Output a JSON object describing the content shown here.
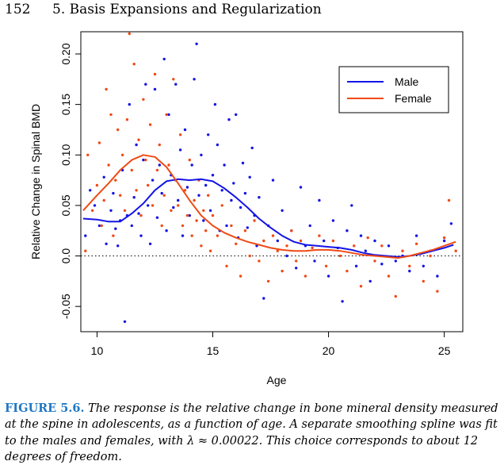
{
  "header": {
    "page_number": "152",
    "chapter_title": "5. Basis Expansions and Regularization"
  },
  "caption": {
    "label": "FIGURE 5.6.",
    "text": "The response is the relative change in bone mineral density measured at the spine in adolescents, as a function of age. A separate smoothing spline was fit to the males and females, with λ ≈ 0.00022. This choice corresponds to about 12 degrees of freedom."
  },
  "chart_data": {
    "type": "scatter",
    "xlabel": "Age",
    "ylabel": "Relative Change in Spinal BMD",
    "xlim": [
      9.3,
      25.8
    ],
    "ylim": [
      -0.075,
      0.222
    ],
    "x_ticks": [
      10,
      15,
      20,
      25
    ],
    "y_ticks": [
      -0.05,
      0.0,
      0.05,
      0.1,
      0.15,
      0.2
    ],
    "x_tick_labels": [
      "10",
      "15",
      "20",
      "25"
    ],
    "y_tick_labels": [
      "-0.05",
      "0.0",
      "0.05",
      "0.10",
      "0.15",
      "0.20"
    ],
    "reference_line": {
      "y": 0,
      "style": "dotted"
    },
    "legend_position": "top-right",
    "series": [
      {
        "name": "Male",
        "color": "#1414e6",
        "curve": [
          [
            9.4,
            0.037
          ],
          [
            10,
            0.036
          ],
          [
            10.5,
            0.034
          ],
          [
            11,
            0.034
          ],
          [
            11.5,
            0.042
          ],
          [
            12,
            0.052
          ],
          [
            12.5,
            0.065
          ],
          [
            13,
            0.074
          ],
          [
            13.5,
            0.076
          ],
          [
            14,
            0.075
          ],
          [
            14.5,
            0.076
          ],
          [
            15,
            0.074
          ],
          [
            15.5,
            0.067
          ],
          [
            16,
            0.058
          ],
          [
            16.5,
            0.048
          ],
          [
            17,
            0.037
          ],
          [
            17.5,
            0.028
          ],
          [
            18,
            0.02
          ],
          [
            18.5,
            0.014
          ],
          [
            19,
            0.011
          ],
          [
            19.5,
            0.01
          ],
          [
            20,
            0.009
          ],
          [
            20.5,
            0.008
          ],
          [
            21,
            0.006
          ],
          [
            21.5,
            0.003
          ],
          [
            22,
            0.001
          ],
          [
            22.5,
            0.0
          ],
          [
            23,
            -0.001
          ],
          [
            23.5,
            0.0
          ],
          [
            24,
            0.002
          ],
          [
            24.5,
            0.005
          ],
          [
            25,
            0.008
          ],
          [
            25.4,
            0.011
          ]
        ],
        "points": [
          [
            9.5,
            0.02
          ],
          [
            9.7,
            0.065
          ],
          [
            9.9,
            0.05
          ],
          [
            10.1,
            0.03
          ],
          [
            10.3,
            0.078
          ],
          [
            10.4,
            0.012
          ],
          [
            10.6,
            0.045
          ],
          [
            10.7,
            0.062
          ],
          [
            10.8,
            0.027
          ],
          [
            10.9,
            0.01
          ],
          [
            11.0,
            0.035
          ],
          [
            11.1,
            0.085
          ],
          [
            11.2,
            -0.065
          ],
          [
            11.3,
            0.04
          ],
          [
            11.4,
            0.15
          ],
          [
            11.5,
            0.03
          ],
          [
            11.6,
            0.058
          ],
          [
            11.7,
            0.11
          ],
          [
            11.8,
            0.042
          ],
          [
            11.9,
            0.02
          ],
          [
            12.0,
            0.095
          ],
          [
            12.1,
            0.17
          ],
          [
            12.2,
            0.05
          ],
          [
            12.3,
            0.012
          ],
          [
            12.4,
            0.075
          ],
          [
            12.5,
            0.165
          ],
          [
            12.6,
            0.038
          ],
          [
            12.7,
            0.09
          ],
          [
            12.8,
            0.062
          ],
          [
            12.9,
            0.195
          ],
          [
            13.0,
            0.025
          ],
          [
            13.1,
            0.14
          ],
          [
            13.2,
            0.08
          ],
          [
            13.3,
            0.048
          ],
          [
            13.4,
            0.17
          ],
          [
            13.5,
            0.055
          ],
          [
            13.6,
            0.105
          ],
          [
            13.7,
            0.02
          ],
          [
            13.8,
            0.125
          ],
          [
            13.9,
            0.068
          ],
          [
            14.0,
            0.04
          ],
          [
            14.1,
            0.09
          ],
          [
            14.2,
            0.175
          ],
          [
            14.3,
            0.21
          ],
          [
            14.4,
            0.06
          ],
          [
            14.5,
            0.1
          ],
          [
            14.6,
            0.035
          ],
          [
            14.7,
            0.07
          ],
          [
            14.8,
            0.12
          ],
          [
            14.9,
            0.045
          ],
          [
            15.0,
            0.08
          ],
          [
            15.1,
            0.15
          ],
          [
            15.2,
            0.11
          ],
          [
            15.3,
            0.025
          ],
          [
            15.4,
            0.065
          ],
          [
            15.5,
            0.09
          ],
          [
            15.6,
            0.03
          ],
          [
            15.7,
            0.135
          ],
          [
            15.8,
            0.055
          ],
          [
            15.9,
            0.072
          ],
          [
            16.0,
            0.14
          ],
          [
            16.1,
            0.018
          ],
          [
            16.2,
            0.048
          ],
          [
            16.3,
            0.092
          ],
          [
            16.4,
            0.062
          ],
          [
            16.5,
            0.028
          ],
          [
            16.6,
            0.078
          ],
          [
            16.7,
            0.107
          ],
          [
            16.8,
            0.04
          ],
          [
            16.9,
            0.01
          ],
          [
            17.0,
            0.058
          ],
          [
            17.2,
            -0.042
          ],
          [
            17.4,
            0.03
          ],
          [
            17.6,
            0.075
          ],
          [
            17.8,
            0.015
          ],
          [
            18.0,
            0.045
          ],
          [
            18.2,
            0.0
          ],
          [
            18.4,
            0.025
          ],
          [
            18.6,
            -0.012
          ],
          [
            18.8,
            0.068
          ],
          [
            19.0,
            0.01
          ],
          [
            19.2,
            0.03
          ],
          [
            19.4,
            -0.005
          ],
          [
            19.6,
            0.055
          ],
          [
            19.8,
            0.015
          ],
          [
            20.0,
            -0.02
          ],
          [
            20.2,
            0.035
          ],
          [
            20.4,
            0.008
          ],
          [
            20.6,
            -0.045
          ],
          [
            20.8,
            0.025
          ],
          [
            21.0,
            0.05
          ],
          [
            21.2,
            -0.01
          ],
          [
            21.4,
            0.02
          ],
          [
            21.6,
            0.005
          ],
          [
            21.8,
            -0.025
          ],
          [
            22.0,
            0.015
          ],
          [
            22.3,
            -0.008
          ],
          [
            22.6,
            0.01
          ],
          [
            22.9,
            -0.005
          ],
          [
            23.2,
            0.0
          ],
          [
            23.5,
            -0.015
          ],
          [
            23.8,
            0.02
          ],
          [
            24.1,
            -0.01
          ],
          [
            24.4,
            0.005
          ],
          [
            24.7,
            -0.02
          ],
          [
            25.0,
            0.015
          ],
          [
            25.3,
            0.032
          ]
        ]
      },
      {
        "name": "Female",
        "color": "#f04a14",
        "curve": [
          [
            9.4,
            0.045
          ],
          [
            10,
            0.06
          ],
          [
            10.5,
            0.072
          ],
          [
            11,
            0.085
          ],
          [
            11.5,
            0.095
          ],
          [
            12,
            0.1
          ],
          [
            12.5,
            0.098
          ],
          [
            13,
            0.088
          ],
          [
            13.5,
            0.072
          ],
          [
            14,
            0.055
          ],
          [
            14.5,
            0.04
          ],
          [
            15,
            0.03
          ],
          [
            15.5,
            0.023
          ],
          [
            16,
            0.018
          ],
          [
            16.5,
            0.014
          ],
          [
            17,
            0.011
          ],
          [
            17.5,
            0.008
          ],
          [
            18,
            0.006
          ],
          [
            18.5,
            0.005
          ],
          [
            19,
            0.005
          ],
          [
            19.5,
            0.006
          ],
          [
            20,
            0.006
          ],
          [
            20.5,
            0.005
          ],
          [
            21,
            0.003
          ],
          [
            21.5,
            0.001
          ],
          [
            22,
            0.0
          ],
          [
            22.5,
            -0.001
          ],
          [
            23,
            -0.002
          ],
          [
            23.5,
            0.0
          ],
          [
            24,
            0.003
          ],
          [
            24.5,
            0.006
          ],
          [
            25,
            0.01
          ],
          [
            25.5,
            0.014
          ]
        ],
        "points": [
          [
            9.5,
            0.005
          ],
          [
            9.6,
            0.1
          ],
          [
            9.8,
            0.045
          ],
          [
            10.0,
            0.07
          ],
          [
            10.1,
            0.112
          ],
          [
            10.2,
            0.03
          ],
          [
            10.3,
            0.055
          ],
          [
            10.4,
            0.165
          ],
          [
            10.5,
            0.09
          ],
          [
            10.6,
            0.14
          ],
          [
            10.7,
            0.02
          ],
          [
            10.8,
            0.075
          ],
          [
            10.9,
            0.125
          ],
          [
            11.0,
            0.06
          ],
          [
            11.1,
            0.1
          ],
          [
            11.2,
            0.045
          ],
          [
            11.3,
            0.135
          ],
          [
            11.4,
            0.22
          ],
          [
            11.5,
            0.085
          ],
          [
            11.6,
            0.19
          ],
          [
            11.7,
            0.065
          ],
          [
            11.8,
            0.115
          ],
          [
            11.9,
            0.04
          ],
          [
            12.0,
            0.155
          ],
          [
            12.1,
            0.095
          ],
          [
            12.2,
            0.07
          ],
          [
            12.3,
            0.13
          ],
          [
            12.4,
            0.05
          ],
          [
            12.5,
            0.18
          ],
          [
            12.6,
            0.085
          ],
          [
            12.7,
            0.11
          ],
          [
            12.8,
            0.03
          ],
          [
            12.9,
            0.06
          ],
          [
            13.0,
            0.14
          ],
          [
            13.1,
            0.09
          ],
          [
            13.2,
            0.045
          ],
          [
            13.3,
            0.175
          ],
          [
            13.4,
            0.075
          ],
          [
            13.5,
            0.05
          ],
          [
            13.6,
            0.12
          ],
          [
            13.7,
            0.03
          ],
          [
            13.8,
            0.065
          ],
          [
            13.9,
            0.04
          ],
          [
            14.0,
            0.095
          ],
          [
            14.1,
            0.02
          ],
          [
            14.2,
            0.055
          ],
          [
            14.3,
            0.035
          ],
          [
            14.4,
            0.075
          ],
          [
            14.5,
            0.01
          ],
          [
            14.6,
            0.045
          ],
          [
            14.7,
            0.025
          ],
          [
            14.8,
            0.06
          ],
          [
            14.9,
            0.005
          ],
          [
            15.0,
            0.04
          ],
          [
            15.2,
            0.02
          ],
          [
            15.4,
            0.05
          ],
          [
            15.6,
            -0.01
          ],
          [
            15.8,
            0.03
          ],
          [
            16.0,
            0.012
          ],
          [
            16.2,
            -0.02
          ],
          [
            16.4,
            0.025
          ],
          [
            16.6,
            0.0
          ],
          [
            16.8,
            0.035
          ],
          [
            17.0,
            -0.005
          ],
          [
            17.2,
            0.015
          ],
          [
            17.4,
            -0.025
          ],
          [
            17.6,
            0.02
          ],
          [
            17.8,
            0.005
          ],
          [
            18.0,
            -0.015
          ],
          [
            18.2,
            0.01
          ],
          [
            18.4,
            0.025
          ],
          [
            18.6,
            -0.005
          ],
          [
            18.8,
            0.015
          ],
          [
            19.0,
            -0.02
          ],
          [
            19.3,
            0.008
          ],
          [
            19.6,
            0.02
          ],
          [
            19.9,
            -0.01
          ],
          [
            20.2,
            0.015
          ],
          [
            20.5,
            0.0
          ],
          [
            20.8,
            -0.015
          ],
          [
            21.1,
            0.01
          ],
          [
            21.4,
            -0.03
          ],
          [
            21.7,
            0.018
          ],
          [
            22.0,
            -0.005
          ],
          [
            22.3,
            0.01
          ],
          [
            22.6,
            -0.02
          ],
          [
            22.9,
            -0.04
          ],
          [
            23.2,
            0.005
          ],
          [
            23.5,
            -0.01
          ],
          [
            23.8,
            0.012
          ],
          [
            24.1,
            -0.025
          ],
          [
            24.4,
            0.0
          ],
          [
            24.7,
            -0.035
          ],
          [
            25.0,
            0.018
          ],
          [
            25.2,
            0.055
          ],
          [
            25.5,
            0.005
          ]
        ]
      }
    ]
  }
}
